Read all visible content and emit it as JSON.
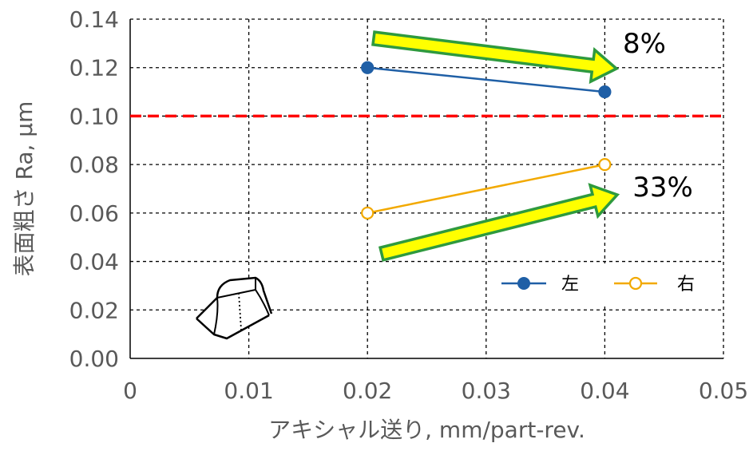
{
  "chart_data": {
    "type": "line",
    "xlabel": "アキシャル送り, mm/part-rev.",
    "ylabel": "表面粗さ Ra, μm",
    "xlim": [
      0,
      0.05
    ],
    "ylim": [
      0,
      0.14
    ],
    "x_ticks": [
      "0",
      "0.01",
      "0.02",
      "0.03",
      "0.04",
      "0.05"
    ],
    "y_ticks": [
      "0.00",
      "0.02",
      "0.04",
      "0.06",
      "0.08",
      "0.10",
      "0.12",
      "0.14"
    ],
    "grid": true,
    "legend_position": "lower-right",
    "series": [
      {
        "name": "左",
        "x": [
          0.02,
          0.04
        ],
        "y": [
          0.12,
          0.11
        ],
        "color": "#1F5FA6",
        "marker": "filled-circle"
      },
      {
        "name": "右",
        "x": [
          0.02,
          0.04
        ],
        "y": [
          0.06,
          0.08
        ],
        "color": "#F2A900",
        "marker": "hollow-circle"
      }
    ],
    "reference_line": {
      "y": 0.1,
      "color": "#FF0000",
      "style": "dashed"
    },
    "annotations": [
      {
        "text": "8%",
        "arrow": "down-right",
        "arrow_fill": "#FFFF00",
        "arrow_outline": "#2E9A3E"
      },
      {
        "text": "33%",
        "arrow": "up-right",
        "arrow_fill": "#FFFF00",
        "arrow_outline": "#2E9A3E"
      }
    ],
    "icon": "tool-insert-icon"
  }
}
